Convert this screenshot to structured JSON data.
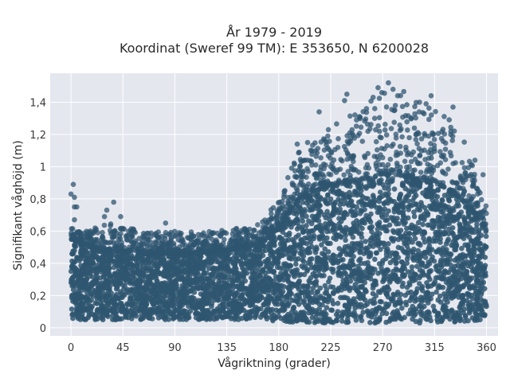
{
  "chart_data": {
    "type": "scatter",
    "title_line1": "År 1979 - 2019",
    "title_line2": "Koordinat (Sweref 99 TM): E 353650, N 6200028",
    "xlabel": "Vågriktning (grader)",
    "ylabel": "Signifikant våghöjd (m)",
    "xlim": [
      -18,
      370
    ],
    "ylim": [
      -0.05,
      1.58
    ],
    "xticks": [
      0,
      45,
      90,
      135,
      180,
      225,
      270,
      315,
      360
    ],
    "xtick_labels": [
      "0",
      "45",
      "90",
      "135",
      "180",
      "225",
      "270",
      "315",
      "360"
    ],
    "yticks": [
      0,
      0.2,
      0.4,
      0.6,
      0.8,
      1.0,
      1.2,
      1.4
    ],
    "ytick_labels": [
      "0",
      "0,2",
      "0,4",
      "0,6",
      "0,8",
      "1",
      "1,2",
      "1,4"
    ],
    "grid": true,
    "marker_color": "#2f5670",
    "background_color": "#e5e7ef",
    "envelope": {
      "x": [
        0,
        10,
        20,
        30,
        45,
        60,
        90,
        120,
        135,
        150,
        165,
        180,
        195,
        210,
        225,
        240,
        255,
        270,
        285,
        300,
        315,
        330,
        345,
        360
      ],
      "dense_upper": [
        0.55,
        0.52,
        0.5,
        0.48,
        0.47,
        0.46,
        0.46,
        0.47,
        0.48,
        0.5,
        0.52,
        0.62,
        0.78,
        0.85,
        0.88,
        0.9,
        0.92,
        0.95,
        0.95,
        0.92,
        0.9,
        0.85,
        0.75,
        0.6
      ],
      "dense_lower": [
        0.05,
        0.05,
        0.05,
        0.05,
        0.05,
        0.05,
        0.05,
        0.05,
        0.05,
        0.05,
        0.05,
        0.04,
        0.03,
        0.03,
        0.03,
        0.03,
        0.03,
        0.03,
        0.03,
        0.03,
        0.03,
        0.03,
        0.04,
        0.05
      ],
      "scatter_upper": [
        0.62,
        0.6,
        0.62,
        0.65,
        0.65,
        0.6,
        0.6,
        0.6,
        0.62,
        0.62,
        0.65,
        0.8,
        1.1,
        1.15,
        1.25,
        1.35,
        1.4,
        1.5,
        1.5,
        1.4,
        1.4,
        1.3,
        1.1,
        0.75
      ]
    },
    "outliers": [
      {
        "x": 0,
        "y": 0.83
      },
      {
        "x": 2,
        "y": 0.89
      },
      {
        "x": 3,
        "y": 0.81
      },
      {
        "x": 3,
        "y": 0.75
      },
      {
        "x": 5,
        "y": 0.75
      },
      {
        "x": 3,
        "y": 0.67
      },
      {
        "x": 37,
        "y": 0.78
      },
      {
        "x": 31,
        "y": 0.73
      },
      {
        "x": 43,
        "y": 0.69
      },
      {
        "x": 29,
        "y": 0.69
      },
      {
        "x": 82,
        "y": 0.65
      },
      {
        "x": 266,
        "y": 1.49
      },
      {
        "x": 275,
        "y": 1.52
      },
      {
        "x": 279,
        "y": 1.48
      },
      {
        "x": 283,
        "y": 1.44
      },
      {
        "x": 281,
        "y": 1.38
      },
      {
        "x": 302,
        "y": 1.4
      },
      {
        "x": 312,
        "y": 1.44
      },
      {
        "x": 331,
        "y": 1.37
      },
      {
        "x": 239,
        "y": 1.45
      },
      {
        "x": 237,
        "y": 1.41
      },
      {
        "x": 215,
        "y": 1.34
      },
      {
        "x": 256,
        "y": 1.36
      },
      {
        "x": 223,
        "y": 1.23
      },
      {
        "x": 205,
        "y": 1.15
      },
      {
        "x": 196,
        "y": 1.14
      },
      {
        "x": 350,
        "y": 1.04
      },
      {
        "x": 357,
        "y": 0.95
      },
      {
        "x": 353,
        "y": 0.85
      }
    ]
  }
}
